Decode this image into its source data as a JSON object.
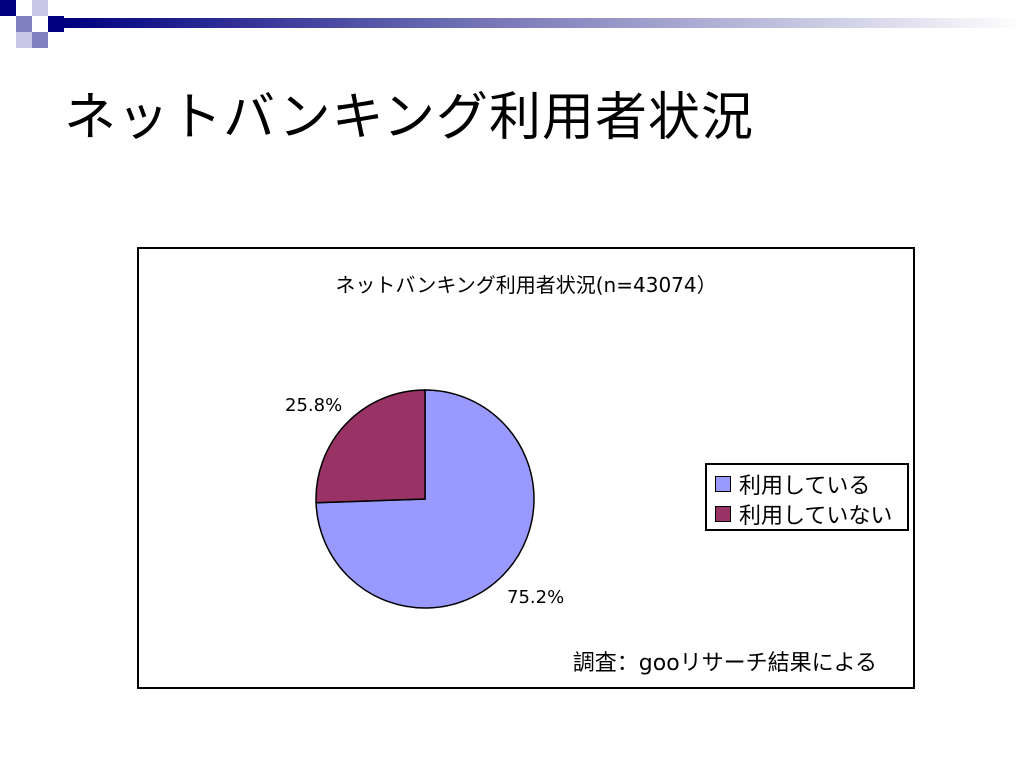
{
  "slide": {
    "title": "ネットバンキング利用者状況"
  },
  "chart_data": {
    "type": "pie",
    "title": "ネットバンキング利用者状況(n=43074）",
    "categories": [
      "利用している",
      "利用していない"
    ],
    "values": [
      75.2,
      25.8
    ],
    "value_labels": [
      "75.2%",
      "25.8%"
    ],
    "colors": [
      "#9999ff",
      "#993366"
    ],
    "legend_position": "right",
    "source_note": "調査：gooリサーチ結果による"
  },
  "theme": {
    "accent_dark": "#000080",
    "accent_light": "#8080c0"
  }
}
